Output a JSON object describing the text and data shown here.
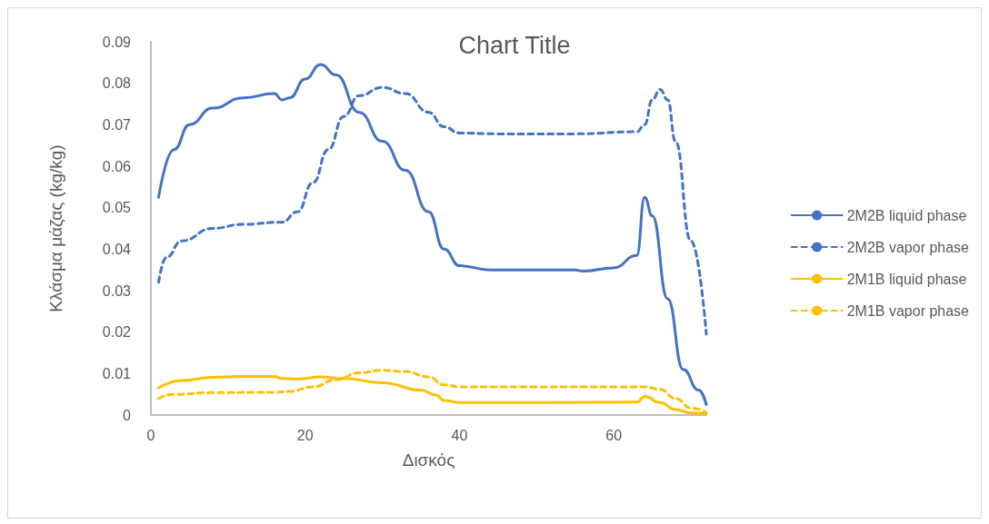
{
  "chart_data": {
    "type": "line",
    "title": "Chart Title",
    "xlabel": "Δισκός",
    "ylabel": "Κλάσμα μάζας (kg/kg)",
    "xlim": [
      0,
      72
    ],
    "xticks": [
      0,
      20,
      40,
      60
    ],
    "ylim": [
      0,
      0.09
    ],
    "yticks": [
      0,
      0.01,
      0.02,
      0.03,
      0.04,
      0.05,
      0.06,
      0.07,
      0.08,
      0.09
    ],
    "grid": false,
    "legend": "right",
    "marker": "none",
    "series": [
      {
        "name": "2M2B liquid phase",
        "color": "#4472c4",
        "line_style": "solid",
        "x": [
          1,
          3,
          5,
          8,
          12,
          16,
          17,
          18,
          20,
          22,
          24,
          27,
          30,
          33,
          36,
          38,
          40,
          44,
          50,
          55,
          56,
          60,
          63,
          64,
          65,
          67,
          69,
          71,
          72
        ],
        "values": [
          0.0525,
          0.064,
          0.07,
          0.074,
          0.0765,
          0.0775,
          0.076,
          0.0765,
          0.081,
          0.0845,
          0.082,
          0.073,
          0.066,
          0.059,
          0.049,
          0.04,
          0.036,
          0.035,
          0.035,
          0.035,
          0.0347,
          0.0355,
          0.0385,
          0.0525,
          0.048,
          0.028,
          0.011,
          0.006,
          0.0025
        ]
      },
      {
        "name": "2M2B vapor phase",
        "color": "#4472c4",
        "line_style": "dashed",
        "x": [
          1,
          2,
          4,
          8,
          12,
          17,
          19,
          21,
          23,
          25,
          27,
          30,
          33,
          36,
          38,
          40,
          45,
          55,
          63,
          64,
          65,
          66,
          67,
          68,
          70,
          72
        ],
        "values": [
          0.032,
          0.038,
          0.042,
          0.045,
          0.046,
          0.0465,
          0.049,
          0.056,
          0.064,
          0.072,
          0.077,
          0.079,
          0.0775,
          0.073,
          0.0695,
          0.068,
          0.0678,
          0.0678,
          0.0683,
          0.07,
          0.076,
          0.0785,
          0.076,
          0.066,
          0.042,
          0.0195
        ]
      },
      {
        "name": "2M1B liquid phase",
        "color": "#ffc000",
        "line_style": "solid",
        "x": [
          1,
          4,
          8,
          12,
          16,
          17,
          19,
          22,
          25,
          30,
          35,
          37,
          38,
          40,
          50,
          63,
          64,
          66,
          68,
          70,
          72
        ],
        "values": [
          0.0065,
          0.0083,
          0.0091,
          0.0093,
          0.0093,
          0.0088,
          0.0087,
          0.0092,
          0.0088,
          0.0078,
          0.006,
          0.0048,
          0.0035,
          0.003,
          0.003,
          0.0031,
          0.0045,
          0.003,
          0.0013,
          0.0005,
          0.0003
        ]
      },
      {
        "name": "2M1B vapor phase",
        "color": "#ffc000",
        "line_style": "dashed",
        "x": [
          1,
          3,
          8,
          16,
          18,
          21,
          24,
          27,
          30,
          33,
          36,
          38,
          40,
          50,
          64,
          66,
          68,
          70,
          72
        ],
        "values": [
          0.004,
          0.005,
          0.0054,
          0.0055,
          0.0057,
          0.0068,
          0.0085,
          0.0102,
          0.0108,
          0.0105,
          0.0092,
          0.0073,
          0.0068,
          0.0068,
          0.0068,
          0.0062,
          0.004,
          0.0017,
          0.0006
        ]
      }
    ]
  }
}
